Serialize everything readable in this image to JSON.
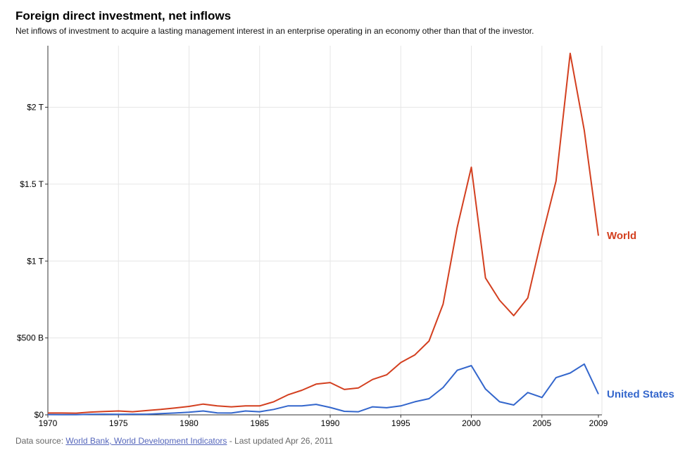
{
  "header": {
    "title": "Foreign direct investment, net inflows",
    "subtitle": "Net inflows of investment to acquire a lasting management interest in an enterprise operating in an economy other than that of the investor."
  },
  "footer": {
    "source_prefix": "Data source:",
    "source_link": "World Bank, World Development Indicators",
    "updated": " - Last updated Apr 26, 2011"
  },
  "chart_data": {
    "type": "line",
    "title": "Foreign direct investment, net inflows",
    "xlabel": "",
    "ylabel": "",
    "xlim": [
      1970,
      2009
    ],
    "ylim": [
      0,
      2.4
    ],
    "grid": true,
    "legend": "end-of-line labels",
    "x_ticks": [
      1970,
      1975,
      1980,
      1985,
      1990,
      1995,
      2000,
      2005,
      2009
    ],
    "x_tick_labels": [
      "1970",
      "1975",
      "1980",
      "1985",
      "1990",
      "1995",
      "2000",
      "2005",
      "2009"
    ],
    "y_ticks": [
      0,
      0.5,
      1,
      1.5,
      2
    ],
    "y_tick_labels": [
      "$0",
      "$500 B",
      "$1 T",
      "$1.5 T",
      "$2 T"
    ],
    "x": [
      1970,
      1971,
      1972,
      1973,
      1974,
      1975,
      1976,
      1977,
      1978,
      1979,
      1980,
      1981,
      1982,
      1983,
      1984,
      1985,
      1986,
      1987,
      1988,
      1989,
      1990,
      1991,
      1992,
      1993,
      1994,
      1995,
      1996,
      1997,
      1998,
      1999,
      2000,
      2001,
      2002,
      2003,
      2004,
      2005,
      2006,
      2007,
      2008,
      2009
    ],
    "series": [
      {
        "name": "World",
        "color": "#d33f1f",
        "values": [
          0.012,
          0.012,
          0.011,
          0.018,
          0.022,
          0.025,
          0.02,
          0.028,
          0.035,
          0.045,
          0.055,
          0.07,
          0.058,
          0.052,
          0.058,
          0.058,
          0.085,
          0.13,
          0.16,
          0.2,
          0.21,
          0.165,
          0.175,
          0.23,
          0.26,
          0.34,
          0.39,
          0.48,
          0.72,
          1.22,
          1.61,
          0.89,
          0.745,
          0.645,
          0.76,
          1.155,
          1.52,
          2.35,
          1.85,
          1.165
        ]
      },
      {
        "name": "United States",
        "color": "#3366cc",
        "values": [
          0.002,
          0.001,
          0.001,
          0.003,
          0.004,
          0.003,
          0.004,
          0.004,
          0.008,
          0.012,
          0.017,
          0.025,
          0.013,
          0.012,
          0.025,
          0.02,
          0.035,
          0.058,
          0.058,
          0.068,
          0.048,
          0.023,
          0.02,
          0.052,
          0.046,
          0.058,
          0.085,
          0.105,
          0.178,
          0.29,
          0.32,
          0.168,
          0.085,
          0.064,
          0.145,
          0.113,
          0.242,
          0.272,
          0.33,
          0.135
        ]
      }
    ]
  }
}
